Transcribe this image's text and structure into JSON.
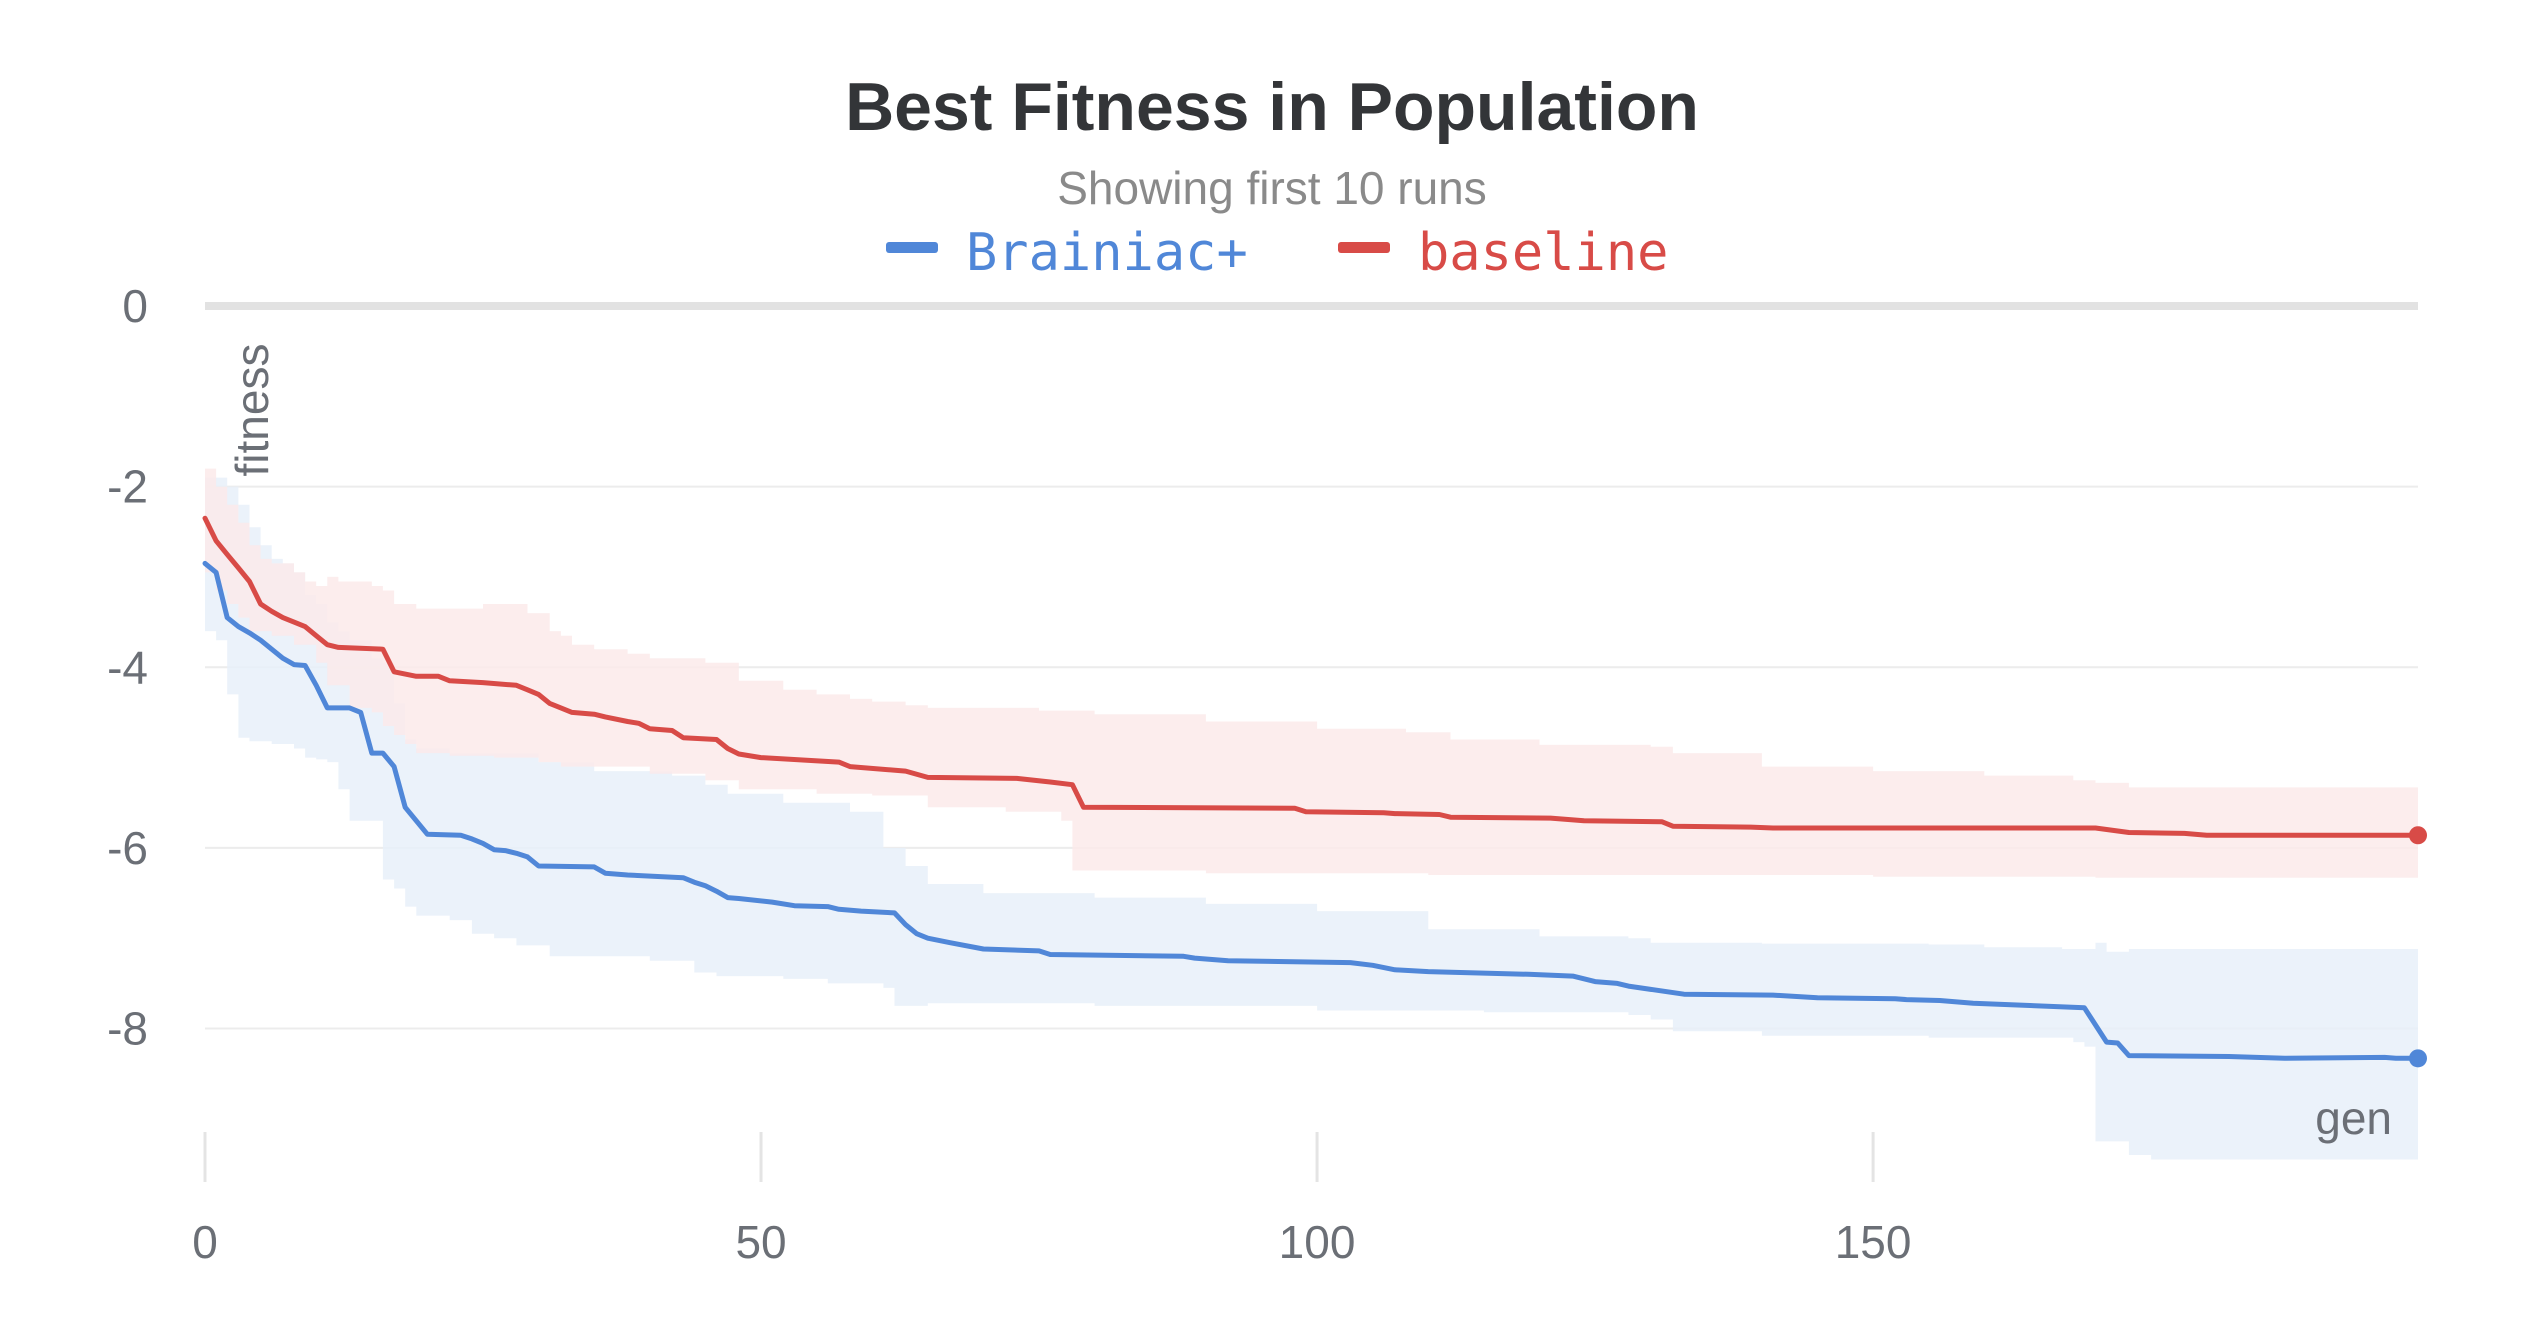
{
  "chart_data": {
    "type": "line",
    "title": "Best Fitness in Population",
    "subtitle": "Showing first 10 runs",
    "xlabel": "gen",
    "ylabel": "fitness",
    "xlim": [
      0,
      199
    ],
    "ylim": [
      -9.5,
      0
    ],
    "x_ticks": [
      0,
      50,
      100,
      150
    ],
    "y_ticks": [
      0,
      -2,
      -4,
      -6,
      -8
    ],
    "x_tick_labels": [
      "0",
      "50",
      "100",
      "150"
    ],
    "y_tick_labels": [
      "0",
      "-2",
      "-4",
      "-6",
      "-8"
    ],
    "grid": true,
    "legend_position": "top-center",
    "series": [
      {
        "name": "Brainiac+",
        "color": "#5087d8",
        "band_color": "#e8f0f9",
        "mean": [
          [
            0,
            -2.85
          ],
          [
            1,
            -2.95
          ],
          [
            2,
            -3.45
          ],
          [
            3,
            -3.55
          ],
          [
            4,
            -3.62
          ],
          [
            5,
            -3.7
          ],
          [
            6,
            -3.8
          ],
          [
            7,
            -3.9
          ],
          [
            8,
            -3.97
          ],
          [
            9,
            -3.98
          ],
          [
            10,
            -4.2
          ],
          [
            11,
            -4.45
          ],
          [
            13,
            -4.45
          ],
          [
            14,
            -4.5
          ],
          [
            15,
            -4.95
          ],
          [
            16,
            -4.95
          ],
          [
            17,
            -5.1
          ],
          [
            18,
            -5.55
          ],
          [
            19,
            -5.7
          ],
          [
            20,
            -5.85
          ],
          [
            23,
            -5.86
          ],
          [
            24,
            -5.9
          ],
          [
            25,
            -5.95
          ],
          [
            26,
            -6.02
          ],
          [
            27,
            -6.03
          ],
          [
            28,
            -6.06
          ],
          [
            29,
            -6.1
          ],
          [
            30,
            -6.2
          ],
          [
            35,
            -6.21
          ],
          [
            36,
            -6.28
          ],
          [
            38,
            -6.3
          ],
          [
            43,
            -6.33
          ],
          [
            44,
            -6.38
          ],
          [
            45,
            -6.42
          ],
          [
            46,
            -6.48
          ],
          [
            47,
            -6.55
          ],
          [
            48,
            -6.56
          ],
          [
            51,
            -6.6
          ],
          [
            53,
            -6.64
          ],
          [
            56,
            -6.65
          ],
          [
            57,
            -6.68
          ],
          [
            59,
            -6.7
          ],
          [
            62,
            -6.72
          ],
          [
            63,
            -6.85
          ],
          [
            64,
            -6.95
          ],
          [
            65,
            -7.0
          ],
          [
            67,
            -7.05
          ],
          [
            70,
            -7.12
          ],
          [
            75,
            -7.14
          ],
          [
            76,
            -7.18
          ],
          [
            88,
            -7.2
          ],
          [
            89,
            -7.22
          ],
          [
            92,
            -7.25
          ],
          [
            103,
            -7.27
          ],
          [
            105,
            -7.3
          ],
          [
            107,
            -7.35
          ],
          [
            110,
            -7.37
          ],
          [
            119,
            -7.4
          ],
          [
            123,
            -7.42
          ],
          [
            125,
            -7.48
          ],
          [
            127,
            -7.5
          ],
          [
            128,
            -7.53
          ],
          [
            133,
            -7.62
          ],
          [
            141,
            -7.63
          ],
          [
            145,
            -7.66
          ],
          [
            152,
            -7.67
          ],
          [
            153,
            -7.68
          ],
          [
            156,
            -7.69
          ],
          [
            159,
            -7.72
          ],
          [
            169,
            -7.77
          ],
          [
            171,
            -8.15
          ],
          [
            172,
            -8.16
          ],
          [
            173,
            -8.3
          ],
          [
            182,
            -8.31
          ],
          [
            187,
            -8.33
          ],
          [
            196,
            -8.32
          ],
          [
            197,
            -8.33
          ],
          [
            199,
            -8.33
          ]
        ],
        "upper": [
          [
            0,
            -1.9
          ],
          [
            2,
            -2.0
          ],
          [
            3,
            -2.2
          ],
          [
            4,
            -2.45
          ],
          [
            5,
            -2.65
          ],
          [
            6,
            -2.8
          ],
          [
            7,
            -2.85
          ],
          [
            8,
            -2.95
          ],
          [
            9,
            -3.2
          ],
          [
            10,
            -3.3
          ],
          [
            11,
            -3.5
          ],
          [
            12,
            -3.6
          ],
          [
            13,
            -3.7
          ],
          [
            15,
            -3.9
          ],
          [
            16,
            -3.95
          ],
          [
            17,
            -4.4
          ],
          [
            18,
            -4.8
          ],
          [
            19,
            -4.9
          ],
          [
            22,
            -4.95
          ],
          [
            30,
            -5.05
          ],
          [
            35,
            -5.15
          ],
          [
            42,
            -5.2
          ],
          [
            45,
            -5.3
          ],
          [
            47,
            -5.4
          ],
          [
            52,
            -5.5
          ],
          [
            58,
            -5.6
          ],
          [
            61,
            -6.0
          ],
          [
            63,
            -6.2
          ],
          [
            65,
            -6.4
          ],
          [
            70,
            -6.5
          ],
          [
            80,
            -6.55
          ],
          [
            90,
            -6.62
          ],
          [
            100,
            -6.7
          ],
          [
            110,
            -6.9
          ],
          [
            120,
            -6.98
          ],
          [
            128,
            -7.0
          ],
          [
            130,
            -7.05
          ],
          [
            140,
            -7.06
          ],
          [
            155,
            -7.07
          ],
          [
            160,
            -7.1
          ],
          [
            167,
            -7.12
          ],
          [
            169,
            -7.12
          ],
          [
            170,
            -7.05
          ],
          [
            171,
            -7.15
          ],
          [
            173,
            -7.12
          ],
          [
            199,
            -7.12
          ]
        ],
        "lower": [
          [
            0,
            -3.6
          ],
          [
            1,
            -3.7
          ],
          [
            2,
            -4.3
          ],
          [
            3,
            -4.78
          ],
          [
            4,
            -4.82
          ],
          [
            6,
            -4.85
          ],
          [
            8,
            -4.9
          ],
          [
            9,
            -5.0
          ],
          [
            10,
            -5.02
          ],
          [
            11,
            -5.05
          ],
          [
            12,
            -5.35
          ],
          [
            13,
            -5.7
          ],
          [
            15,
            -5.7
          ],
          [
            16,
            -6.35
          ],
          [
            17,
            -6.45
          ],
          [
            18,
            -6.65
          ],
          [
            19,
            -6.75
          ],
          [
            22,
            -6.8
          ],
          [
            24,
            -6.95
          ],
          [
            26,
            -7.0
          ],
          [
            28,
            -7.08
          ],
          [
            31,
            -7.2
          ],
          [
            40,
            -7.25
          ],
          [
            44,
            -7.38
          ],
          [
            46,
            -7.42
          ],
          [
            52,
            -7.45
          ],
          [
            56,
            -7.5
          ],
          [
            61,
            -7.55
          ],
          [
            62,
            -7.75
          ],
          [
            65,
            -7.72
          ],
          [
            80,
            -7.75
          ],
          [
            100,
            -7.8
          ],
          [
            115,
            -7.82
          ],
          [
            128,
            -7.85
          ],
          [
            130,
            -7.9
          ],
          [
            132,
            -8.03
          ],
          [
            140,
            -8.08
          ],
          [
            155,
            -8.1
          ],
          [
            168,
            -8.15
          ],
          [
            169,
            -8.2
          ],
          [
            170,
            -9.25
          ],
          [
            173,
            -9.4
          ],
          [
            175,
            -9.45
          ],
          [
            199,
            -9.48
          ]
        ]
      },
      {
        "name": "baseline",
        "color": "#d84b47",
        "band_color": "#fbeaea",
        "mean": [
          [
            0,
            -2.35
          ],
          [
            1,
            -2.6
          ],
          [
            2,
            -2.75
          ],
          [
            3,
            -2.9
          ],
          [
            4,
            -3.05
          ],
          [
            5,
            -3.3
          ],
          [
            6,
            -3.38
          ],
          [
            7,
            -3.45
          ],
          [
            8,
            -3.5
          ],
          [
            9,
            -3.55
          ],
          [
            10,
            -3.65
          ],
          [
            11,
            -3.75
          ],
          [
            12,
            -3.78
          ],
          [
            16,
            -3.8
          ],
          [
            17,
            -4.05
          ],
          [
            19,
            -4.1
          ],
          [
            21,
            -4.1
          ],
          [
            22,
            -4.15
          ],
          [
            25,
            -4.17
          ],
          [
            28,
            -4.2
          ],
          [
            29,
            -4.25
          ],
          [
            30,
            -4.3
          ],
          [
            31,
            -4.4
          ],
          [
            32,
            -4.45
          ],
          [
            33,
            -4.5
          ],
          [
            35,
            -4.52
          ],
          [
            36,
            -4.55
          ],
          [
            38,
            -4.6
          ],
          [
            39,
            -4.62
          ],
          [
            40,
            -4.68
          ],
          [
            42,
            -4.7
          ],
          [
            43,
            -4.78
          ],
          [
            46,
            -4.8
          ],
          [
            47,
            -4.9
          ],
          [
            48,
            -4.96
          ],
          [
            50,
            -5.0
          ],
          [
            57,
            -5.05
          ],
          [
            58,
            -5.1
          ],
          [
            63,
            -5.15
          ],
          [
            65,
            -5.22
          ],
          [
            73,
            -5.23
          ],
          [
            76,
            -5.27
          ],
          [
            78,
            -5.3
          ],
          [
            79,
            -5.55
          ],
          [
            98,
            -5.56
          ],
          [
            99,
            -5.6
          ],
          [
            106,
            -5.61
          ],
          [
            107,
            -5.62
          ],
          [
            111,
            -5.63
          ],
          [
            112,
            -5.66
          ],
          [
            121,
            -5.67
          ],
          [
            124,
            -5.7
          ],
          [
            131,
            -5.71
          ],
          [
            132,
            -5.76
          ],
          [
            139,
            -5.77
          ],
          [
            141,
            -5.78
          ],
          [
            170,
            -5.78
          ],
          [
            173,
            -5.83
          ],
          [
            178,
            -5.84
          ],
          [
            180,
            -5.86
          ],
          [
            199,
            -5.86
          ]
        ],
        "upper": [
          [
            0,
            -1.8
          ],
          [
            1,
            -2.0
          ],
          [
            2,
            -2.2
          ],
          [
            3,
            -2.4
          ],
          [
            4,
            -2.65
          ],
          [
            5,
            -2.8
          ],
          [
            6,
            -2.85
          ],
          [
            8,
            -2.95
          ],
          [
            9,
            -3.05
          ],
          [
            10,
            -3.1
          ],
          [
            11,
            -3.0
          ],
          [
            12,
            -3.05
          ],
          [
            15,
            -3.1
          ],
          [
            16,
            -3.15
          ],
          [
            17,
            -3.3
          ],
          [
            19,
            -3.35
          ],
          [
            25,
            -3.3
          ],
          [
            28,
            -3.3
          ],
          [
            29,
            -3.4
          ],
          [
            31,
            -3.6
          ],
          [
            32,
            -3.65
          ],
          [
            33,
            -3.75
          ],
          [
            35,
            -3.8
          ],
          [
            38,
            -3.85
          ],
          [
            40,
            -3.9
          ],
          [
            45,
            -3.95
          ],
          [
            48,
            -4.15
          ],
          [
            52,
            -4.25
          ],
          [
            55,
            -4.3
          ],
          [
            58,
            -4.35
          ],
          [
            60,
            -4.38
          ],
          [
            63,
            -4.42
          ],
          [
            65,
            -4.45
          ],
          [
            75,
            -4.48
          ],
          [
            80,
            -4.52
          ],
          [
            90,
            -4.6
          ],
          [
            100,
            -4.68
          ],
          [
            108,
            -4.72
          ],
          [
            112,
            -4.8
          ],
          [
            120,
            -4.86
          ],
          [
            130,
            -4.88
          ],
          [
            132,
            -4.95
          ],
          [
            140,
            -5.1
          ],
          [
            150,
            -5.15
          ],
          [
            160,
            -5.2
          ],
          [
            168,
            -5.25
          ],
          [
            170,
            -5.28
          ],
          [
            173,
            -5.33
          ],
          [
            199,
            -5.33
          ]
        ],
        "lower": [
          [
            0,
            -2.95
          ],
          [
            1,
            -3.15
          ],
          [
            2,
            -3.3
          ],
          [
            3,
            -3.45
          ],
          [
            4,
            -3.6
          ],
          [
            6,
            -3.65
          ],
          [
            8,
            -3.75
          ],
          [
            10,
            -3.95
          ],
          [
            11,
            -4.2
          ],
          [
            13,
            -4.45
          ],
          [
            15,
            -4.5
          ],
          [
            16,
            -4.65
          ],
          [
            17,
            -4.75
          ],
          [
            18,
            -4.85
          ],
          [
            19,
            -4.95
          ],
          [
            22,
            -4.98
          ],
          [
            26,
            -5.0
          ],
          [
            30,
            -5.05
          ],
          [
            32,
            -5.1
          ],
          [
            40,
            -5.18
          ],
          [
            45,
            -5.25
          ],
          [
            48,
            -5.35
          ],
          [
            55,
            -5.4
          ],
          [
            60,
            -5.42
          ],
          [
            65,
            -5.55
          ],
          [
            72,
            -5.6
          ],
          [
            77,
            -5.7
          ],
          [
            78,
            -6.25
          ],
          [
            90,
            -6.28
          ],
          [
            110,
            -6.3
          ],
          [
            130,
            -6.3
          ],
          [
            150,
            -6.32
          ],
          [
            170,
            -6.33
          ],
          [
            199,
            -6.35
          ]
        ]
      }
    ]
  }
}
